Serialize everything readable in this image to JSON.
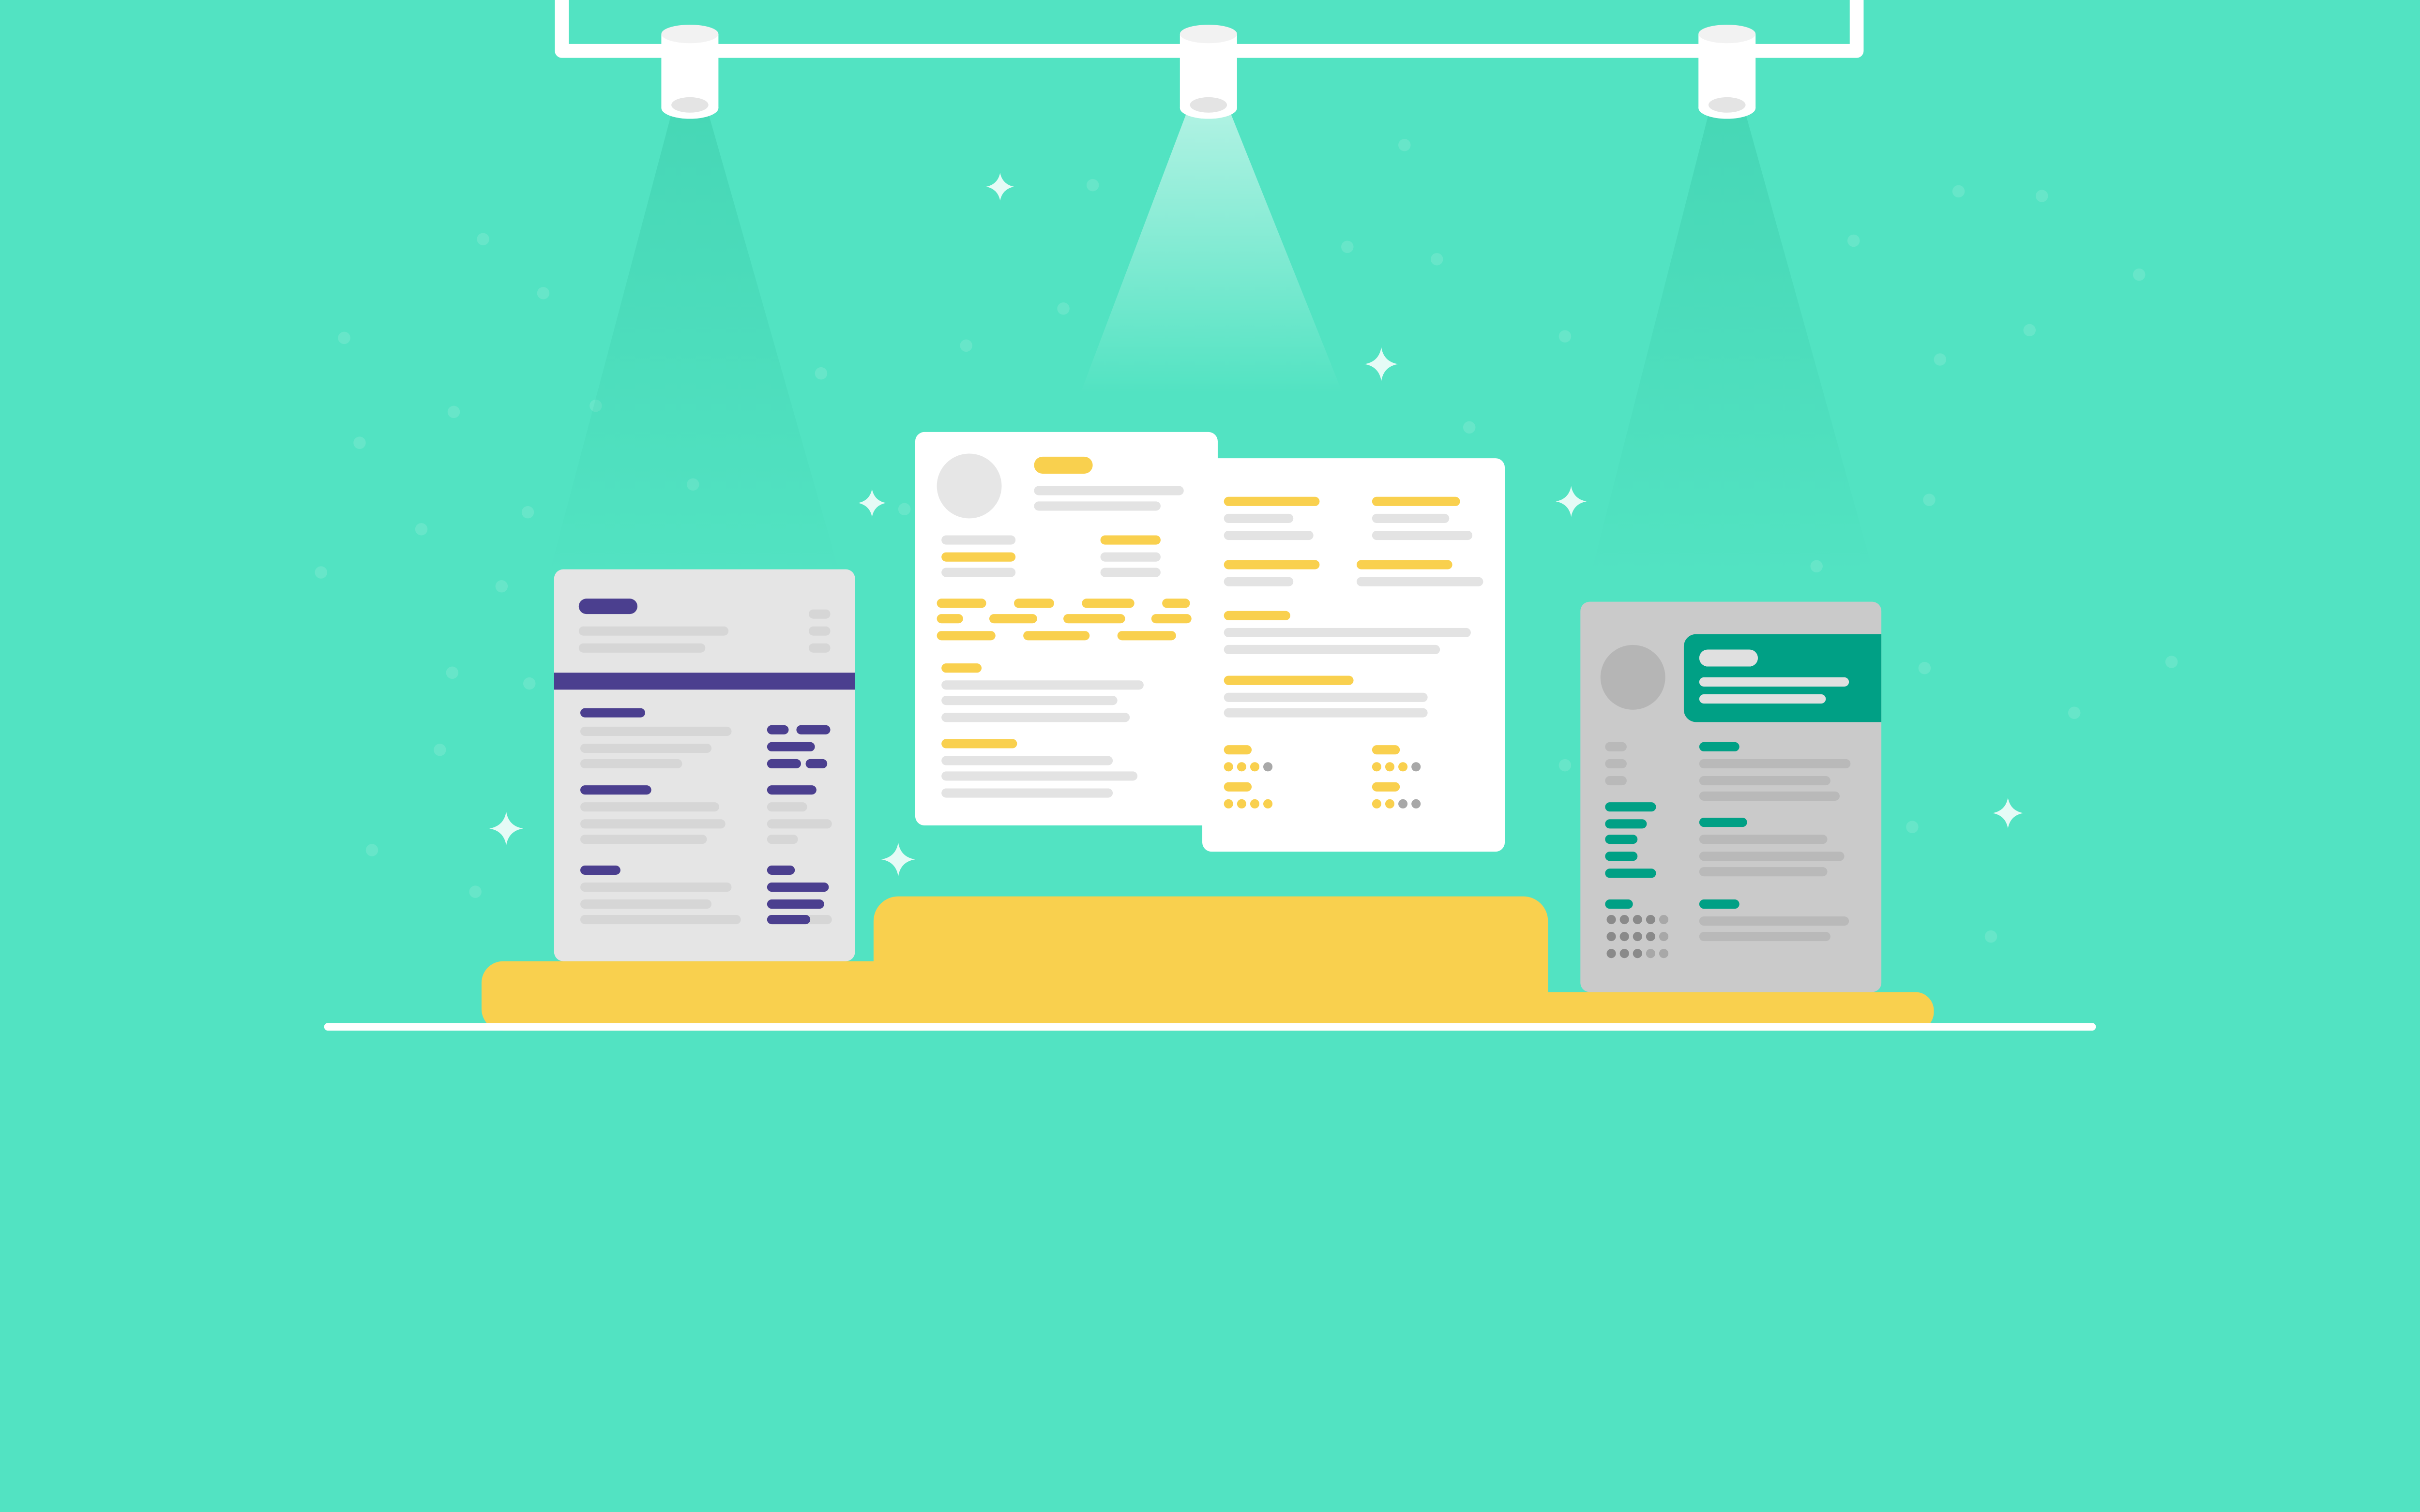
{
  "colors": {
    "background": "#52e3c2",
    "podium": "#f9d04e",
    "rail": "#ffffff",
    "card_left": "#e5e5e5",
    "card_left_accent": "#4b3f8f",
    "card_middle": "#ffffff",
    "card_middle_accent": "#f9d04e",
    "card_right": "#cacaca",
    "card_right_accent": "#00a085",
    "placeholder_line": "#e3e3e3"
  },
  "icons": [
    "spotlight-icon",
    "sparkle-icon",
    "avatar-placeholder-icon",
    "skill-rating-dots-icon"
  ]
}
